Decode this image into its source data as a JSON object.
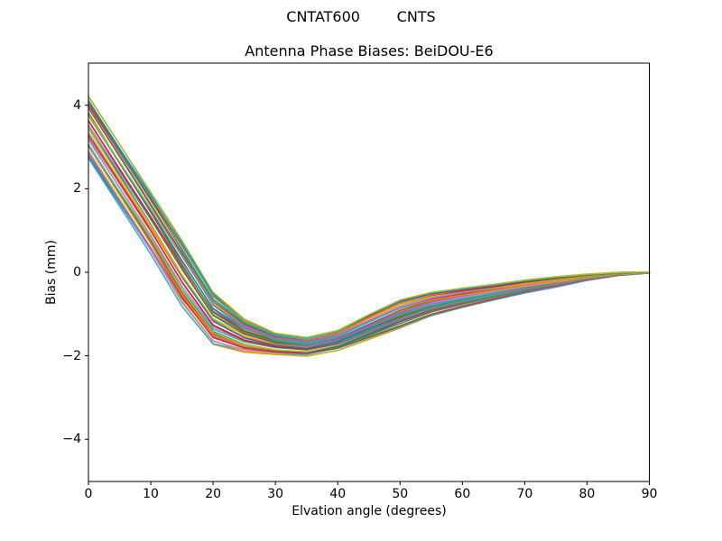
{
  "figure": {
    "suptitle": "CNTAT600        CNTS",
    "title": "Antenna Phase Biases: BeiDOU-E6",
    "xlabel": "Elvation angle (degrees)",
    "ylabel": "Bias (mm)"
  },
  "axis": {
    "x_tick_labels": [
      "0",
      "10",
      "20",
      "30",
      "40",
      "50",
      "60",
      "70",
      "80",
      "90"
    ],
    "y_tick_labels": [
      "4",
      "2",
      "0",
      "−2",
      "−4"
    ],
    "x_tick_values": [
      0,
      10,
      20,
      30,
      40,
      50,
      60,
      70,
      80,
      90
    ],
    "y_tick_values": [
      4,
      2,
      0,
      -2,
      -4
    ]
  },
  "chart_data": {
    "type": "line",
    "suptitle": "CNTAT600        CNTS",
    "title": "Antenna Phase Biases: BeiDOU-E6",
    "xlabel": "Elvation angle (degrees)",
    "ylabel": "Bias (mm)",
    "xlim": [
      0,
      90
    ],
    "ylim": [
      -5.01,
      5.01
    ],
    "xticks": [
      0,
      10,
      20,
      30,
      40,
      50,
      60,
      70,
      80,
      90
    ],
    "yticks": [
      -4,
      -2,
      0,
      2,
      4
    ],
    "grid": false,
    "legend": "none",
    "description": "Dense bundle of unlabeled per-satellite antenna phase-bias curves vs elevation angle; all curves descend from ~2.7-4.26 mm at 0 deg, reach minimum ~-1.55 to -2.02 mm near 35 deg, then rise and converge to 0 mm at 90 deg.",
    "x": [
      0,
      5,
      10,
      15,
      20,
      25,
      30,
      35,
      40,
      45,
      50,
      55,
      60,
      65,
      70,
      75,
      80,
      85,
      90
    ],
    "envelope_top": [
      4.25,
      3.1,
      1.95,
      0.8,
      -0.45,
      -1.1,
      -1.45,
      -1.55,
      -1.38,
      -1.0,
      -0.65,
      -0.47,
      -0.37,
      -0.28,
      -0.18,
      -0.1,
      -0.04,
      0.0,
      0.01
    ],
    "envelope_bottom": [
      2.7,
      1.55,
      0.4,
      -0.85,
      -1.75,
      -1.93,
      -1.98,
      -2.02,
      -1.88,
      -1.62,
      -1.35,
      -1.05,
      -0.85,
      -0.67,
      -0.5,
      -0.36,
      -0.2,
      -0.08,
      -0.02
    ],
    "n_series": 44,
    "band_jitter": 0.055,
    "line_width": 1.4,
    "colors": [
      "#1f77b4",
      "#ff7f0e",
      "#2ca02c",
      "#d62728",
      "#9467bd",
      "#8c564b",
      "#e377c2",
      "#7f7f7f",
      "#bcbd22",
      "#17becf"
    ]
  }
}
